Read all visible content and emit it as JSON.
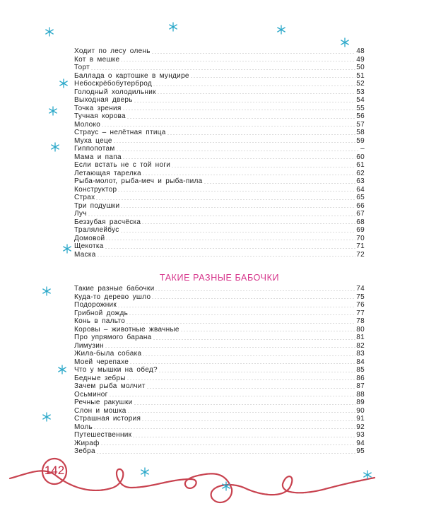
{
  "page_number": "142",
  "colors": {
    "heading": "#d6338a",
    "snowflake": "#2aa8c9",
    "yarn": "#c8424f"
  },
  "section1": {
    "items": [
      {
        "title": "Ходит по лесу олень",
        "page": "48"
      },
      {
        "title": "Кот в мешке",
        "page": "49"
      },
      {
        "title": "Торт",
        "page": "50"
      },
      {
        "title": "Баллада о картошке в мундире",
        "page": "51"
      },
      {
        "title": "Небоскрёбобутерброд",
        "page": "52"
      },
      {
        "title": "Голодный холодильник",
        "page": "53"
      },
      {
        "title": "Выходная дверь",
        "page": "54"
      },
      {
        "title": "Точка зрения",
        "page": "55"
      },
      {
        "title": "Тучная корова",
        "page": "56"
      },
      {
        "title": "Молоко",
        "page": "57"
      },
      {
        "title": "Страус – нелётная птица",
        "page": "58"
      },
      {
        "title": "Муха цеце",
        "page": "59"
      },
      {
        "title": "Гиппопотам",
        "page": "–"
      },
      {
        "title": "Мама и папа",
        "page": "60"
      },
      {
        "title": "Если встать не с той ноги",
        "page": "61"
      },
      {
        "title": "Летающая тарелка",
        "page": "62"
      },
      {
        "title": "Рыба-молот, рыба-меч и рыба-пила",
        "page": "63"
      },
      {
        "title": "Конструктор",
        "page": "64"
      },
      {
        "title": "Страх",
        "page": "65"
      },
      {
        "title": "Три подушки",
        "page": "66"
      },
      {
        "title": "Луч",
        "page": "67"
      },
      {
        "title": "Беззубая расчёска",
        "page": "68"
      },
      {
        "title": "Тралялейбус",
        "page": "69"
      },
      {
        "title": "Домовой",
        "page": "70"
      },
      {
        "title": "Щекотка",
        "page": "71"
      },
      {
        "title": "Маска",
        "page": "72"
      }
    ]
  },
  "section2": {
    "heading": "ТАКИЕ РАЗНЫЕ БАБОЧКИ",
    "items": [
      {
        "title": "Такие разные бабочки",
        "page": "74"
      },
      {
        "title": "Куда-то дерево ушло",
        "page": "75"
      },
      {
        "title": "Подорожник",
        "page": "76"
      },
      {
        "title": "Грибной дождь",
        "page": "77"
      },
      {
        "title": "Конь в пальто",
        "page": "78"
      },
      {
        "title": "Коровы – животные жвачные",
        "page": "80"
      },
      {
        "title": "Про упрямого барана",
        "page": "81"
      },
      {
        "title": "Лимузин",
        "page": "82"
      },
      {
        "title": "Жила-была собака",
        "page": "83"
      },
      {
        "title": "Моей черепахе",
        "page": "84"
      },
      {
        "title": "Что у мышки на обед?",
        "page": "85"
      },
      {
        "title": "Бедные зебры",
        "page": "86"
      },
      {
        "title": "Зачем рыба молчит",
        "page": "87"
      },
      {
        "title": "Осьминог",
        "page": "88"
      },
      {
        "title": "Речные ракушки",
        "page": "89"
      },
      {
        "title": "Слон и мошка",
        "page": "90"
      },
      {
        "title": "Страшная история",
        "page": "91"
      },
      {
        "title": "Моль",
        "page": "92"
      },
      {
        "title": "Путешественник",
        "page": "93"
      },
      {
        "title": "Жираф",
        "page": "94"
      },
      {
        "title": "Зебра",
        "page": "95"
      }
    ]
  }
}
